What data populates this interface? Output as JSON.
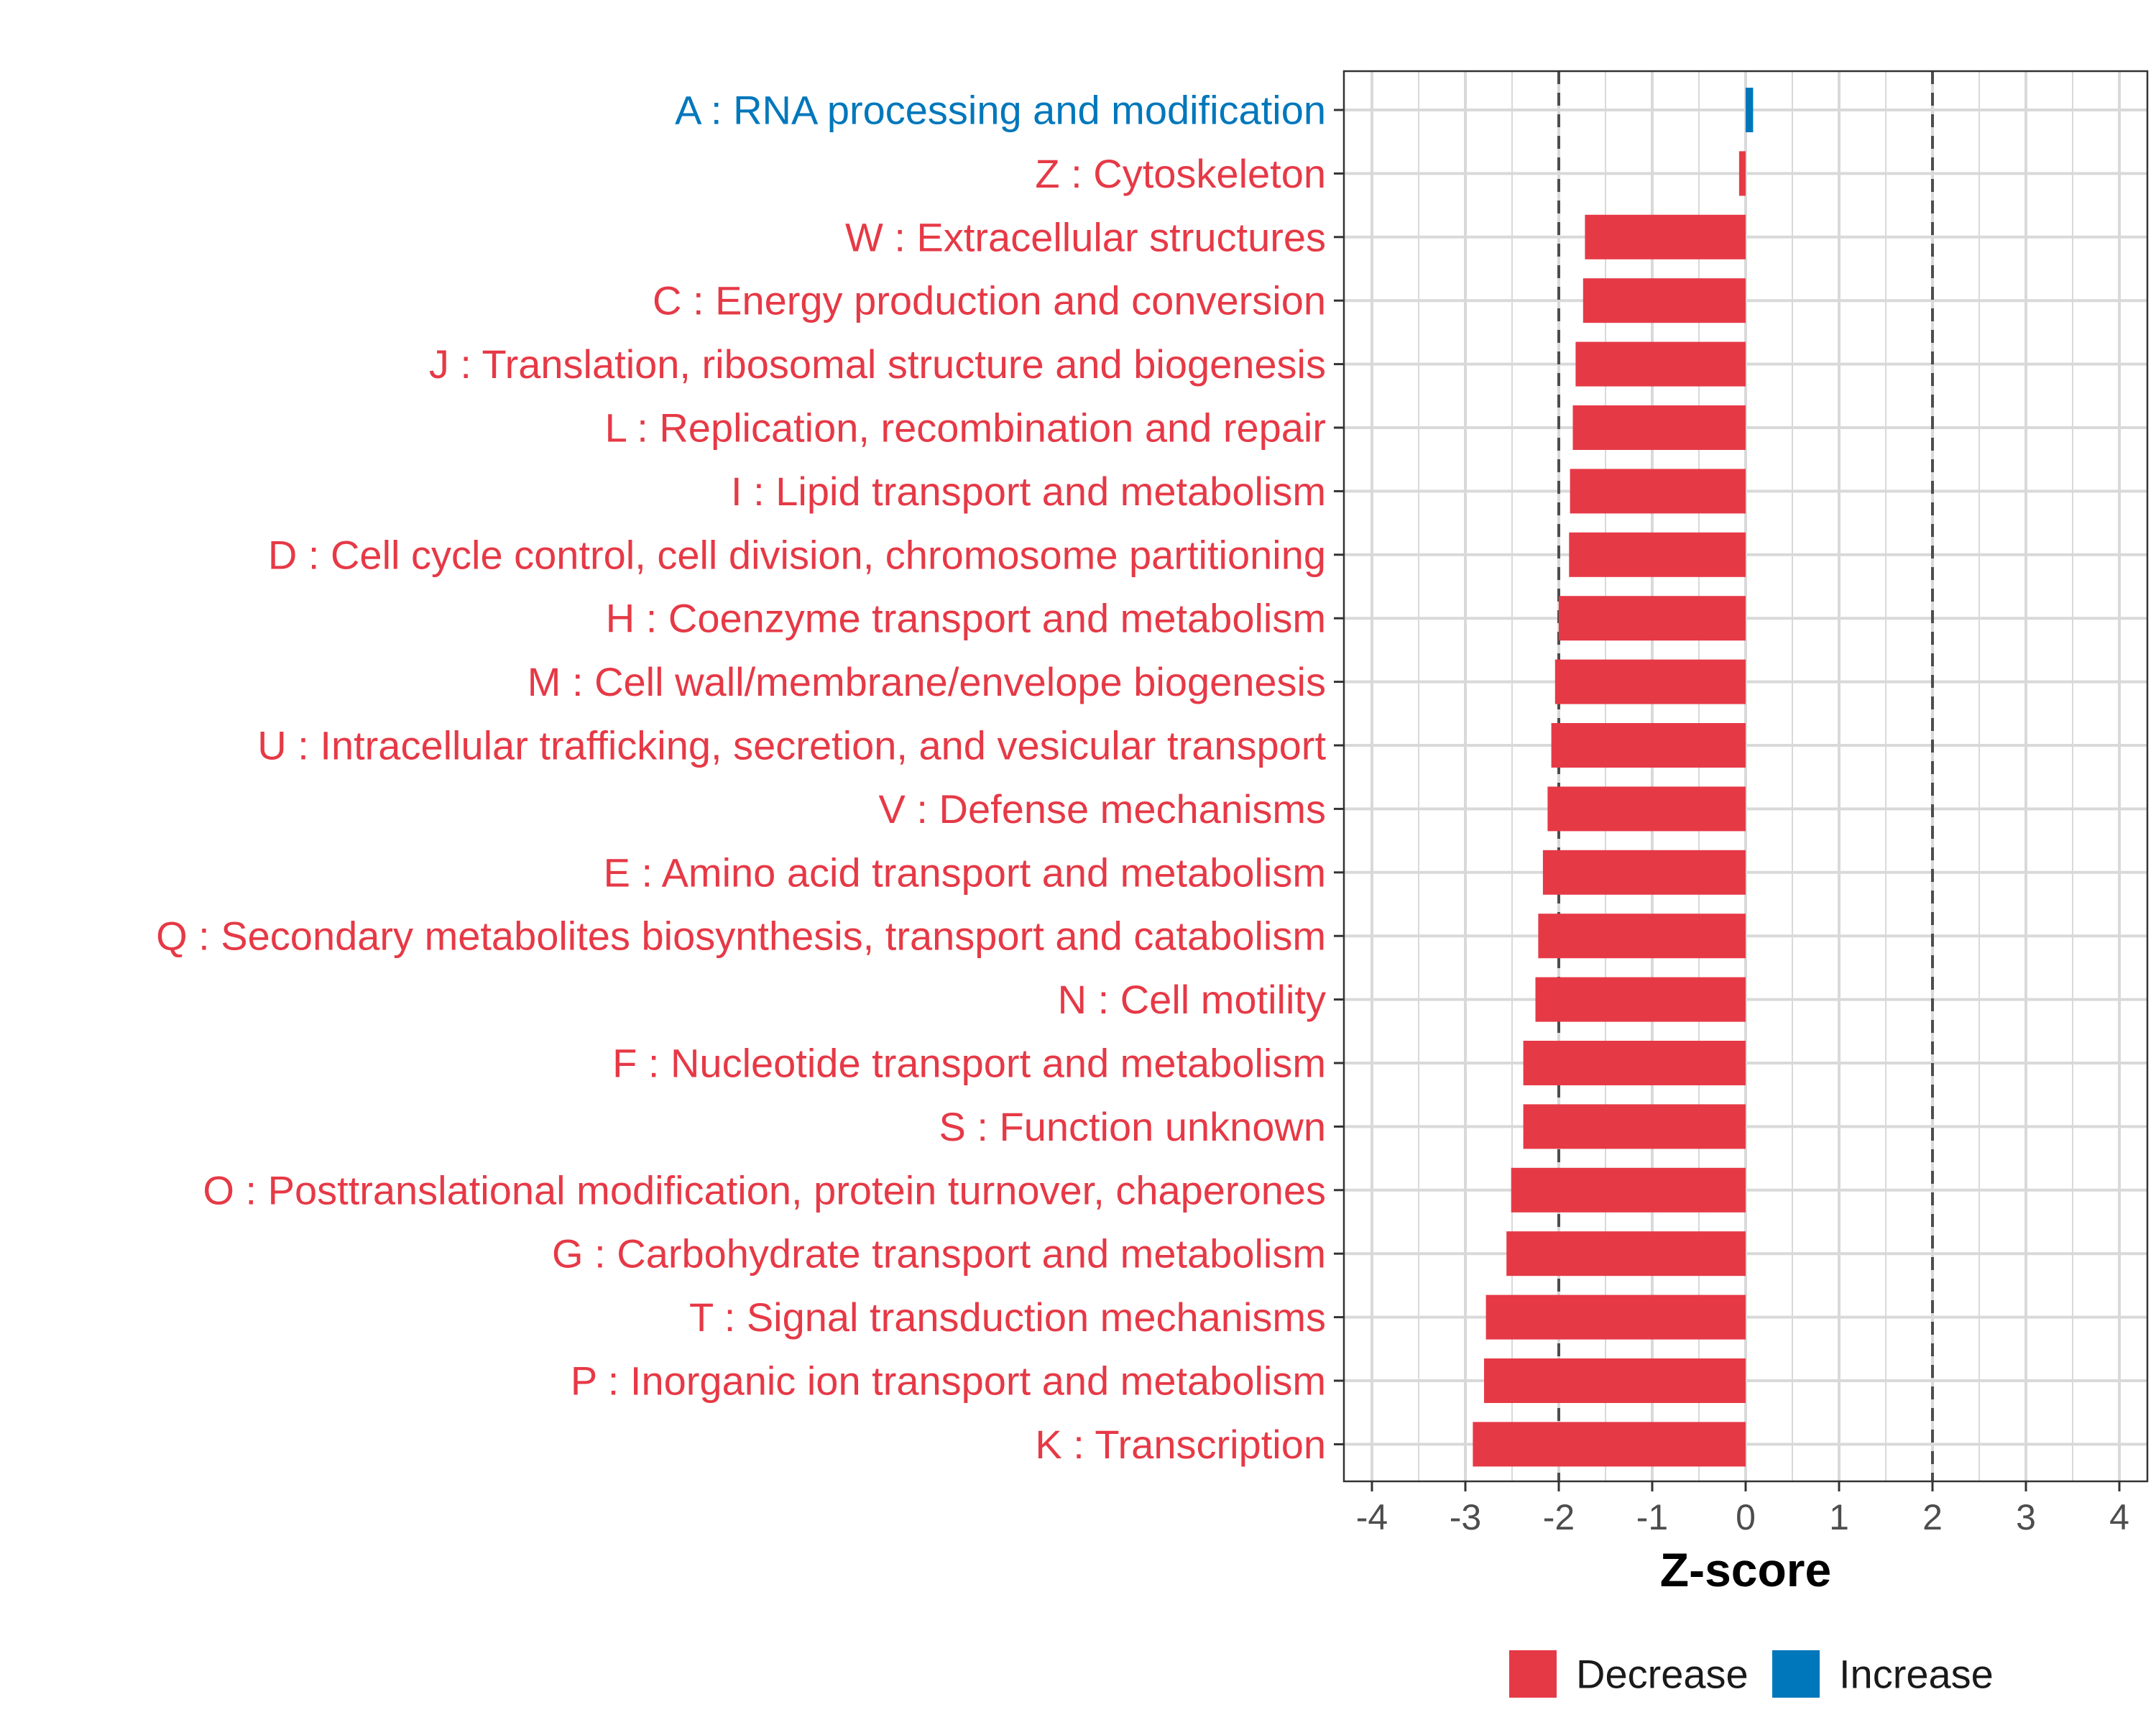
{
  "chart_data": {
    "type": "bar",
    "orientation": "horizontal",
    "xlabel": "Z-score",
    "ylabel": "",
    "xlim": [
      -4.3,
      4.3
    ],
    "xticks": [
      -4,
      -3,
      -2,
      -1,
      0,
      1,
      2,
      3,
      4
    ],
    "xtick_labels": [
      "-4",
      "-3",
      "-2",
      "-1",
      "0",
      "1",
      "2",
      "3",
      "4"
    ],
    "reference_lines": [
      -2,
      2
    ],
    "grid": true,
    "categories": [
      "A : RNA processing and modification",
      "Z : Cytoskeleton",
      "W : Extracellular structures",
      "C : Energy production and conversion",
      "J : Translation, ribosomal structure and biogenesis",
      "L : Replication, recombination and repair",
      "I : Lipid transport and metabolism",
      "D : Cell cycle control, cell division, chromosome partitioning",
      "H : Coenzyme transport and metabolism",
      "M : Cell wall/membrane/envelope biogenesis",
      "U : Intracellular trafficking, secretion, and vesicular transport",
      "V : Defense mechanisms",
      "E : Amino acid transport and metabolism",
      "Q : Secondary metabolites biosynthesis, transport and catabolism",
      "N : Cell motility",
      "F : Nucleotide transport and metabolism",
      "S : Function unknown",
      "O : Posttranslational modification, protein turnover, chaperones",
      "G : Carbohydrate transport and metabolism",
      "T : Signal transduction mechanisms",
      "P : Inorganic ion transport and metabolism",
      "K : Transcription"
    ],
    "values": [
      0.08,
      -0.07,
      -1.72,
      -1.74,
      -1.82,
      -1.85,
      -1.88,
      -1.89,
      -2.0,
      -2.04,
      -2.08,
      -2.12,
      -2.17,
      -2.22,
      -2.25,
      -2.38,
      -2.38,
      -2.51,
      -2.56,
      -2.78,
      -2.8,
      -2.92
    ],
    "groups": [
      "Increase",
      "Decrease",
      "Decrease",
      "Decrease",
      "Decrease",
      "Decrease",
      "Decrease",
      "Decrease",
      "Decrease",
      "Decrease",
      "Decrease",
      "Decrease",
      "Decrease",
      "Decrease",
      "Decrease",
      "Decrease",
      "Decrease",
      "Decrease",
      "Decrease",
      "Decrease",
      "Decrease",
      "Decrease"
    ],
    "legend": {
      "position": "bottom",
      "entries": [
        {
          "label": "Decrease",
          "color": "#e63946"
        },
        {
          "label": "Increase",
          "color": "#0077bb"
        }
      ]
    }
  },
  "colors": {
    "decrease": "#e63946",
    "increase": "#0077bb",
    "grid": "#d9d9d9",
    "reference_line": "#4d4d4d"
  }
}
